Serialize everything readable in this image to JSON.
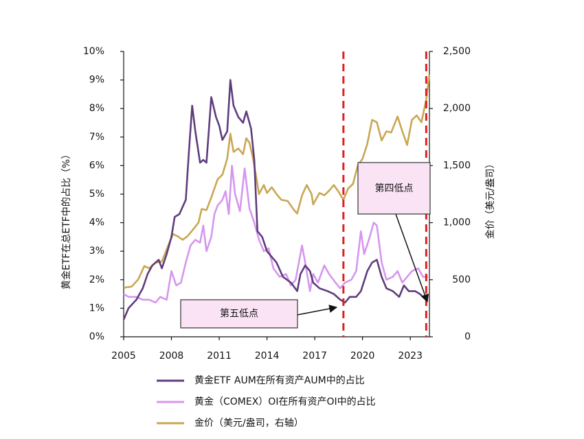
{
  "chart_data": {
    "type": "line",
    "ylabel": "黄金ETF在总ETF中的占比（%）",
    "y2label": "金价（美元/盎司）",
    "xlim": [
      2005,
      2024.2
    ],
    "xticks": [
      2005,
      2008,
      2011,
      2014,
      2017,
      2020,
      2023
    ],
    "ylim": [
      0,
      10
    ],
    "yticks": [
      {
        "value": 0,
        "label": "0%"
      },
      {
        "value": 1,
        "label": "1%"
      },
      {
        "value": 2,
        "label": "2%"
      },
      {
        "value": 3,
        "label": "3%"
      },
      {
        "value": 4,
        "label": "4%"
      },
      {
        "value": 5,
        "label": "5%"
      },
      {
        "value": 6,
        "label": "6%"
      },
      {
        "value": 7,
        "label": "7%"
      },
      {
        "value": 8,
        "label": "8%"
      },
      {
        "value": 9,
        "label": "9%"
      },
      {
        "value": 10,
        "label": "10%"
      }
    ],
    "y2lim": [
      0,
      2500
    ],
    "y2ticks": [
      0,
      500,
      {
        "value": 1000,
        "label": "1,000"
      },
      {
        "value": 1500,
        "label": "1,500"
      },
      {
        "value": 2000,
        "label": "2,000"
      },
      {
        "value": 2500,
        "label": "2,500"
      }
    ],
    "grid": false,
    "vlines": [
      2018.8,
      2024.0
    ],
    "vline_color": "#e02020",
    "annotations": [
      "第四低点",
      "第五低点"
    ],
    "series": [
      {
        "name": "黄金ETF AUM在所有资产AUM中的占比",
        "color": "#5e3c7c",
        "x": [
          2005.0,
          2005.3,
          2005.8,
          2006.2,
          2006.5,
          2006.8,
          2007.2,
          2007.4,
          2007.7,
          2008.0,
          2008.2,
          2008.5,
          2008.9,
          2009.1,
          2009.3,
          2009.5,
          2009.8,
          2010.0,
          2010.2,
          2010.5,
          2010.8,
          2011.0,
          2011.2,
          2011.5,
          2011.7,
          2011.9,
          2012.2,
          2012.5,
          2012.7,
          2013.0,
          2013.2,
          2013.4,
          2013.7,
          2014.0,
          2014.3,
          2014.6,
          2015.0,
          2015.5,
          2015.9,
          2016.1,
          2016.4,
          2016.7,
          2016.9,
          2017.3,
          2017.8,
          2018.2,
          2018.6,
          2018.9,
          2019.2,
          2019.6,
          2019.9,
          2020.3,
          2020.6,
          2020.9,
          2021.2,
          2021.5,
          2021.9,
          2022.3,
          2022.6,
          2022.9,
          2023.3,
          2023.6,
          2024.0
        ],
        "values": [
          0.6,
          1.0,
          1.3,
          1.7,
          2.2,
          2.5,
          2.7,
          2.4,
          2.9,
          3.5,
          4.2,
          4.3,
          4.8,
          6.5,
          8.1,
          7.2,
          6.1,
          6.2,
          6.1,
          8.4,
          7.7,
          7.4,
          6.9,
          7.2,
          9.0,
          8.1,
          7.7,
          7.5,
          7.9,
          7.3,
          6.2,
          3.7,
          3.5,
          3.0,
          2.8,
          2.6,
          2.1,
          1.9,
          1.6,
          2.2,
          2.5,
          2.3,
          1.9,
          1.7,
          1.6,
          1.5,
          1.3,
          1.2,
          1.4,
          1.4,
          1.6,
          2.3,
          2.6,
          2.7,
          2.1,
          1.7,
          1.6,
          1.4,
          1.8,
          1.6,
          1.6,
          1.5,
          1.3
        ]
      },
      {
        "name": "黄金（COMEX）OI在所有资产OI中的占比",
        "color": "#d596ee",
        "x": [
          2005.0,
          2005.3,
          2005.8,
          2006.2,
          2006.6,
          2007.0,
          2007.3,
          2007.7,
          2008.0,
          2008.3,
          2008.6,
          2008.9,
          2009.2,
          2009.5,
          2009.8,
          2010.0,
          2010.2,
          2010.5,
          2010.7,
          2010.9,
          2011.2,
          2011.4,
          2011.6,
          2011.8,
          2012.0,
          2012.3,
          2012.6,
          2012.9,
          2013.2,
          2013.5,
          2013.8,
          2014.1,
          2014.4,
          2014.8,
          2015.2,
          2015.5,
          2015.8,
          2016.2,
          2016.4,
          2016.7,
          2016.9,
          2017.2,
          2017.6,
          2017.9,
          2018.3,
          2018.6,
          2018.9,
          2019.3,
          2019.6,
          2019.9,
          2020.1,
          2020.4,
          2020.7,
          2020.9,
          2021.2,
          2021.5,
          2021.9,
          2022.2,
          2022.5,
          2022.8,
          2023.1,
          2023.5,
          2023.8,
          2024.1
        ],
        "values": [
          1.5,
          1.4,
          1.4,
          1.3,
          1.3,
          1.2,
          1.4,
          1.3,
          2.3,
          1.8,
          1.9,
          2.6,
          3.2,
          3.4,
          3.3,
          3.9,
          3.0,
          3.5,
          4.3,
          4.6,
          4.8,
          5.1,
          4.3,
          6.0,
          5.0,
          4.4,
          5.9,
          4.5,
          4.0,
          3.4,
          3.0,
          3.1,
          2.4,
          2.1,
          2.2,
          1.8,
          2.0,
          3.2,
          2.6,
          1.6,
          2.2,
          1.9,
          2.5,
          2.2,
          1.9,
          1.7,
          1.9,
          2.0,
          2.3,
          3.7,
          2.9,
          3.4,
          4.0,
          3.9,
          2.6,
          2.0,
          2.1,
          2.3,
          1.9,
          2.1,
          2.3,
          2.4,
          2.1,
          2.1
        ]
      },
      {
        "name": "金价（美元/盎司，右轴）",
        "color": "#c9a651",
        "axis": "y2",
        "x": [
          2005.0,
          2005.5,
          2005.9,
          2006.3,
          2006.6,
          2007.0,
          2007.4,
          2007.8,
          2008.1,
          2008.4,
          2008.7,
          2009.0,
          2009.3,
          2009.7,
          2009.9,
          2010.2,
          2010.5,
          2010.9,
          2011.2,
          2011.5,
          2011.7,
          2011.9,
          2012.2,
          2012.5,
          2012.7,
          2012.9,
          2013.1,
          2013.3,
          2013.5,
          2013.8,
          2014.0,
          2014.3,
          2014.6,
          2014.9,
          2015.3,
          2015.7,
          2015.9,
          2016.2,
          2016.5,
          2016.8,
          2016.9,
          2017.3,
          2017.6,
          2017.9,
          2018.2,
          2018.5,
          2018.8,
          2019.1,
          2019.4,
          2019.7,
          2020.0,
          2020.3,
          2020.6,
          2020.9,
          2021.2,
          2021.5,
          2021.8,
          2022.2,
          2022.5,
          2022.8,
          2023.1,
          2023.4,
          2023.7,
          2024.0,
          2024.2
        ],
        "values": [
          430,
          440,
          500,
          620,
          600,
          650,
          660,
          800,
          900,
          880,
          850,
          880,
          930,
          1000,
          1120,
          1110,
          1220,
          1380,
          1420,
          1560,
          1780,
          1620,
          1650,
          1600,
          1740,
          1700,
          1580,
          1420,
          1250,
          1330,
          1260,
          1310,
          1250,
          1200,
          1190,
          1110,
          1080,
          1240,
          1330,
          1250,
          1160,
          1260,
          1240,
          1280,
          1330,
          1270,
          1200,
          1300,
          1340,
          1500,
          1560,
          1690,
          1900,
          1880,
          1720,
          1800,
          1790,
          1930,
          1800,
          1680,
          1900,
          1940,
          1880,
          2080,
          2300
        ]
      }
    ]
  }
}
